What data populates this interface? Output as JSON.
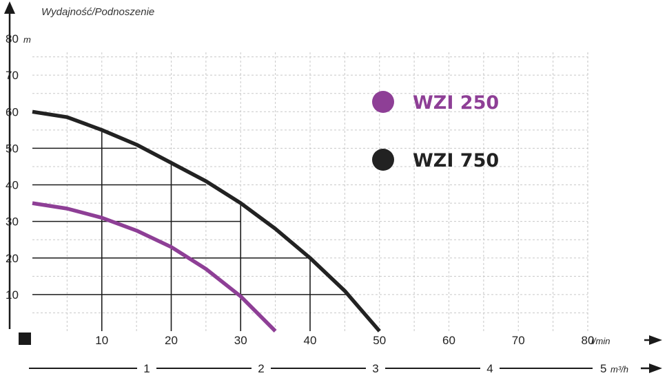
{
  "chart_data": {
    "type": "line",
    "title": "",
    "ylabel": "Wydajność/Podnoszenie",
    "y_unit": "m",
    "x_unit": "l/min",
    "x2_unit": "m³/h",
    "xlim": [
      0,
      80
    ],
    "ylim": [
      0,
      80
    ],
    "grid": true,
    "legend_position": "top-right",
    "y_ticks": [
      10,
      20,
      30,
      40,
      50,
      60,
      70,
      80
    ],
    "x_ticks": [
      10,
      20,
      30,
      40,
      50,
      60,
      70,
      80
    ],
    "x2_ticks": [
      {
        "value": 1,
        "label": "1"
      },
      {
        "value": 2,
        "label": "2"
      },
      {
        "value": 3,
        "label": "3"
      },
      {
        "value": 4,
        "label": "4"
      },
      {
        "value": 5,
        "label": "5"
      }
    ],
    "series": [
      {
        "name": "WZI 250",
        "color": "#8e3f96",
        "x": [
          0,
          5,
          10,
          15,
          20,
          25,
          30,
          35
        ],
        "y": [
          35,
          33.5,
          31,
          27.5,
          23,
          17,
          9.5,
          0
        ]
      },
      {
        "name": "WZI 750",
        "color": "#222222",
        "x": [
          0,
          5,
          10,
          15,
          20,
          25,
          30,
          35,
          40,
          45,
          50
        ],
        "y": [
          60,
          58.5,
          55,
          51,
          46,
          41,
          35,
          28,
          20,
          11,
          0
        ]
      }
    ]
  }
}
